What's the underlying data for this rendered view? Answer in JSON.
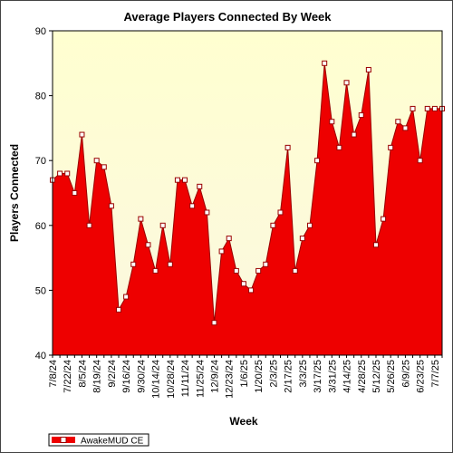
{
  "chart_data": {
    "type": "area",
    "title": "Average Players Connected By Week",
    "xlabel": "Week",
    "ylabel": "Players Connected",
    "ylim": [
      40,
      90
    ],
    "yticks": [
      40,
      50,
      60,
      70,
      80,
      90
    ],
    "grid": false,
    "legend_position": "bottom-left",
    "colors": {
      "fill": "#ee0000",
      "line": "#990000",
      "marker_fill": "#ffffff",
      "plot_bg_top": "#ffffd0",
      "plot_bg_bottom": "#fbf7e0"
    },
    "x_tick_labels": [
      "7/8/24",
      "7/22/24",
      "8/5/24",
      "8/19/24",
      "9/2/24",
      "9/16/24",
      "9/30/24",
      "10/14/24",
      "10/28/24",
      "11/11/24",
      "11/25/24",
      "12/9/24",
      "12/23/24",
      "1/6/25",
      "1/20/25",
      "2/3/25",
      "2/17/25",
      "3/3/25",
      "3/17/25",
      "3/31/25",
      "4/14/25",
      "4/28/25",
      "5/12/25",
      "5/26/25",
      "6/9/25",
      "6/23/25",
      "7/7/25"
    ],
    "x": [
      "7/8/24",
      "7/15/24",
      "7/22/24",
      "7/29/24",
      "8/5/24",
      "8/12/24",
      "8/19/24",
      "8/26/24",
      "9/2/24",
      "9/9/24",
      "9/16/24",
      "9/23/24",
      "9/30/24",
      "10/7/24",
      "10/14/24",
      "10/21/24",
      "10/28/24",
      "11/4/24",
      "11/11/24",
      "11/18/24",
      "11/25/24",
      "12/2/24",
      "12/9/24",
      "12/16/24",
      "12/23/24",
      "12/30/24",
      "1/6/25",
      "1/13/25",
      "1/20/25",
      "1/27/25",
      "2/3/25",
      "2/10/25",
      "2/17/25",
      "2/24/25",
      "3/3/25",
      "3/10/25",
      "3/17/25",
      "3/24/25",
      "3/31/25",
      "4/7/25",
      "4/14/25",
      "4/21/25",
      "4/28/25",
      "5/5/25",
      "5/12/25",
      "5/19/25",
      "5/26/25",
      "6/2/25",
      "6/9/25",
      "6/16/25",
      "6/23/25",
      "6/30/25",
      "7/7/25",
      "7/14/25"
    ],
    "series": [
      {
        "name": "AwakeMUD CE",
        "values": [
          67,
          68,
          68,
          65,
          74,
          60,
          70,
          69,
          63,
          47,
          49,
          54,
          61,
          57,
          53,
          60,
          54,
          67,
          67,
          63,
          66,
          62,
          45,
          56,
          58,
          53,
          51,
          50,
          53,
          54,
          60,
          62,
          72,
          53,
          58,
          60,
          70,
          85,
          76,
          72,
          82,
          74,
          77,
          84,
          57,
          61,
          72,
          76,
          75,
          78,
          70,
          78,
          78,
          78
        ]
      }
    ]
  }
}
